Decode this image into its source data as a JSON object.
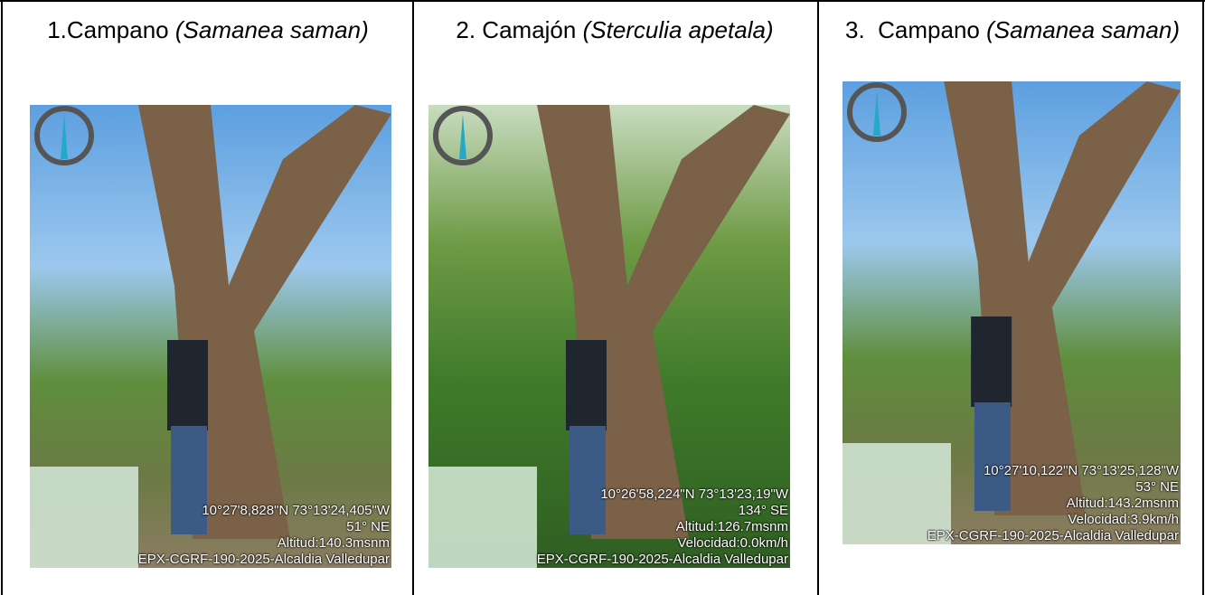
{
  "table": {
    "cells": [
      {
        "common_name": "1.Campano",
        "scientific_name": "(Samanea saman)",
        "photo_overlay": [
          "10°27'8,828\"N 73°13'24,405\"W",
          "51° NE",
          "Altitud:140.3msnm",
          "EPX-CGRF-190-2025-Alcaldia Valledupar"
        ]
      },
      {
        "common_name": "2. Camajón",
        "scientific_name": "(Sterculia apetala)",
        "photo_overlay": [
          "10°26'58,224\"N 73°13'23,19\"W",
          "134° SE",
          "Altitud:126.7msnm",
          "Velocidad:0.0km/h",
          "EPX-CGRF-190-2025-Alcaldia Valledupar"
        ]
      },
      {
        "common_name": "3.  Campano",
        "scientific_name": "(Samanea saman)",
        "photo_overlay": [
          "10°27'10,122\"N 73°13'25,128\"W",
          "53° NE",
          "Altitud:143.2msnm",
          "Velocidad:3.9km/h",
          "EPX-CGRF-190-2025-Alcaldia Valledupar"
        ]
      }
    ]
  }
}
